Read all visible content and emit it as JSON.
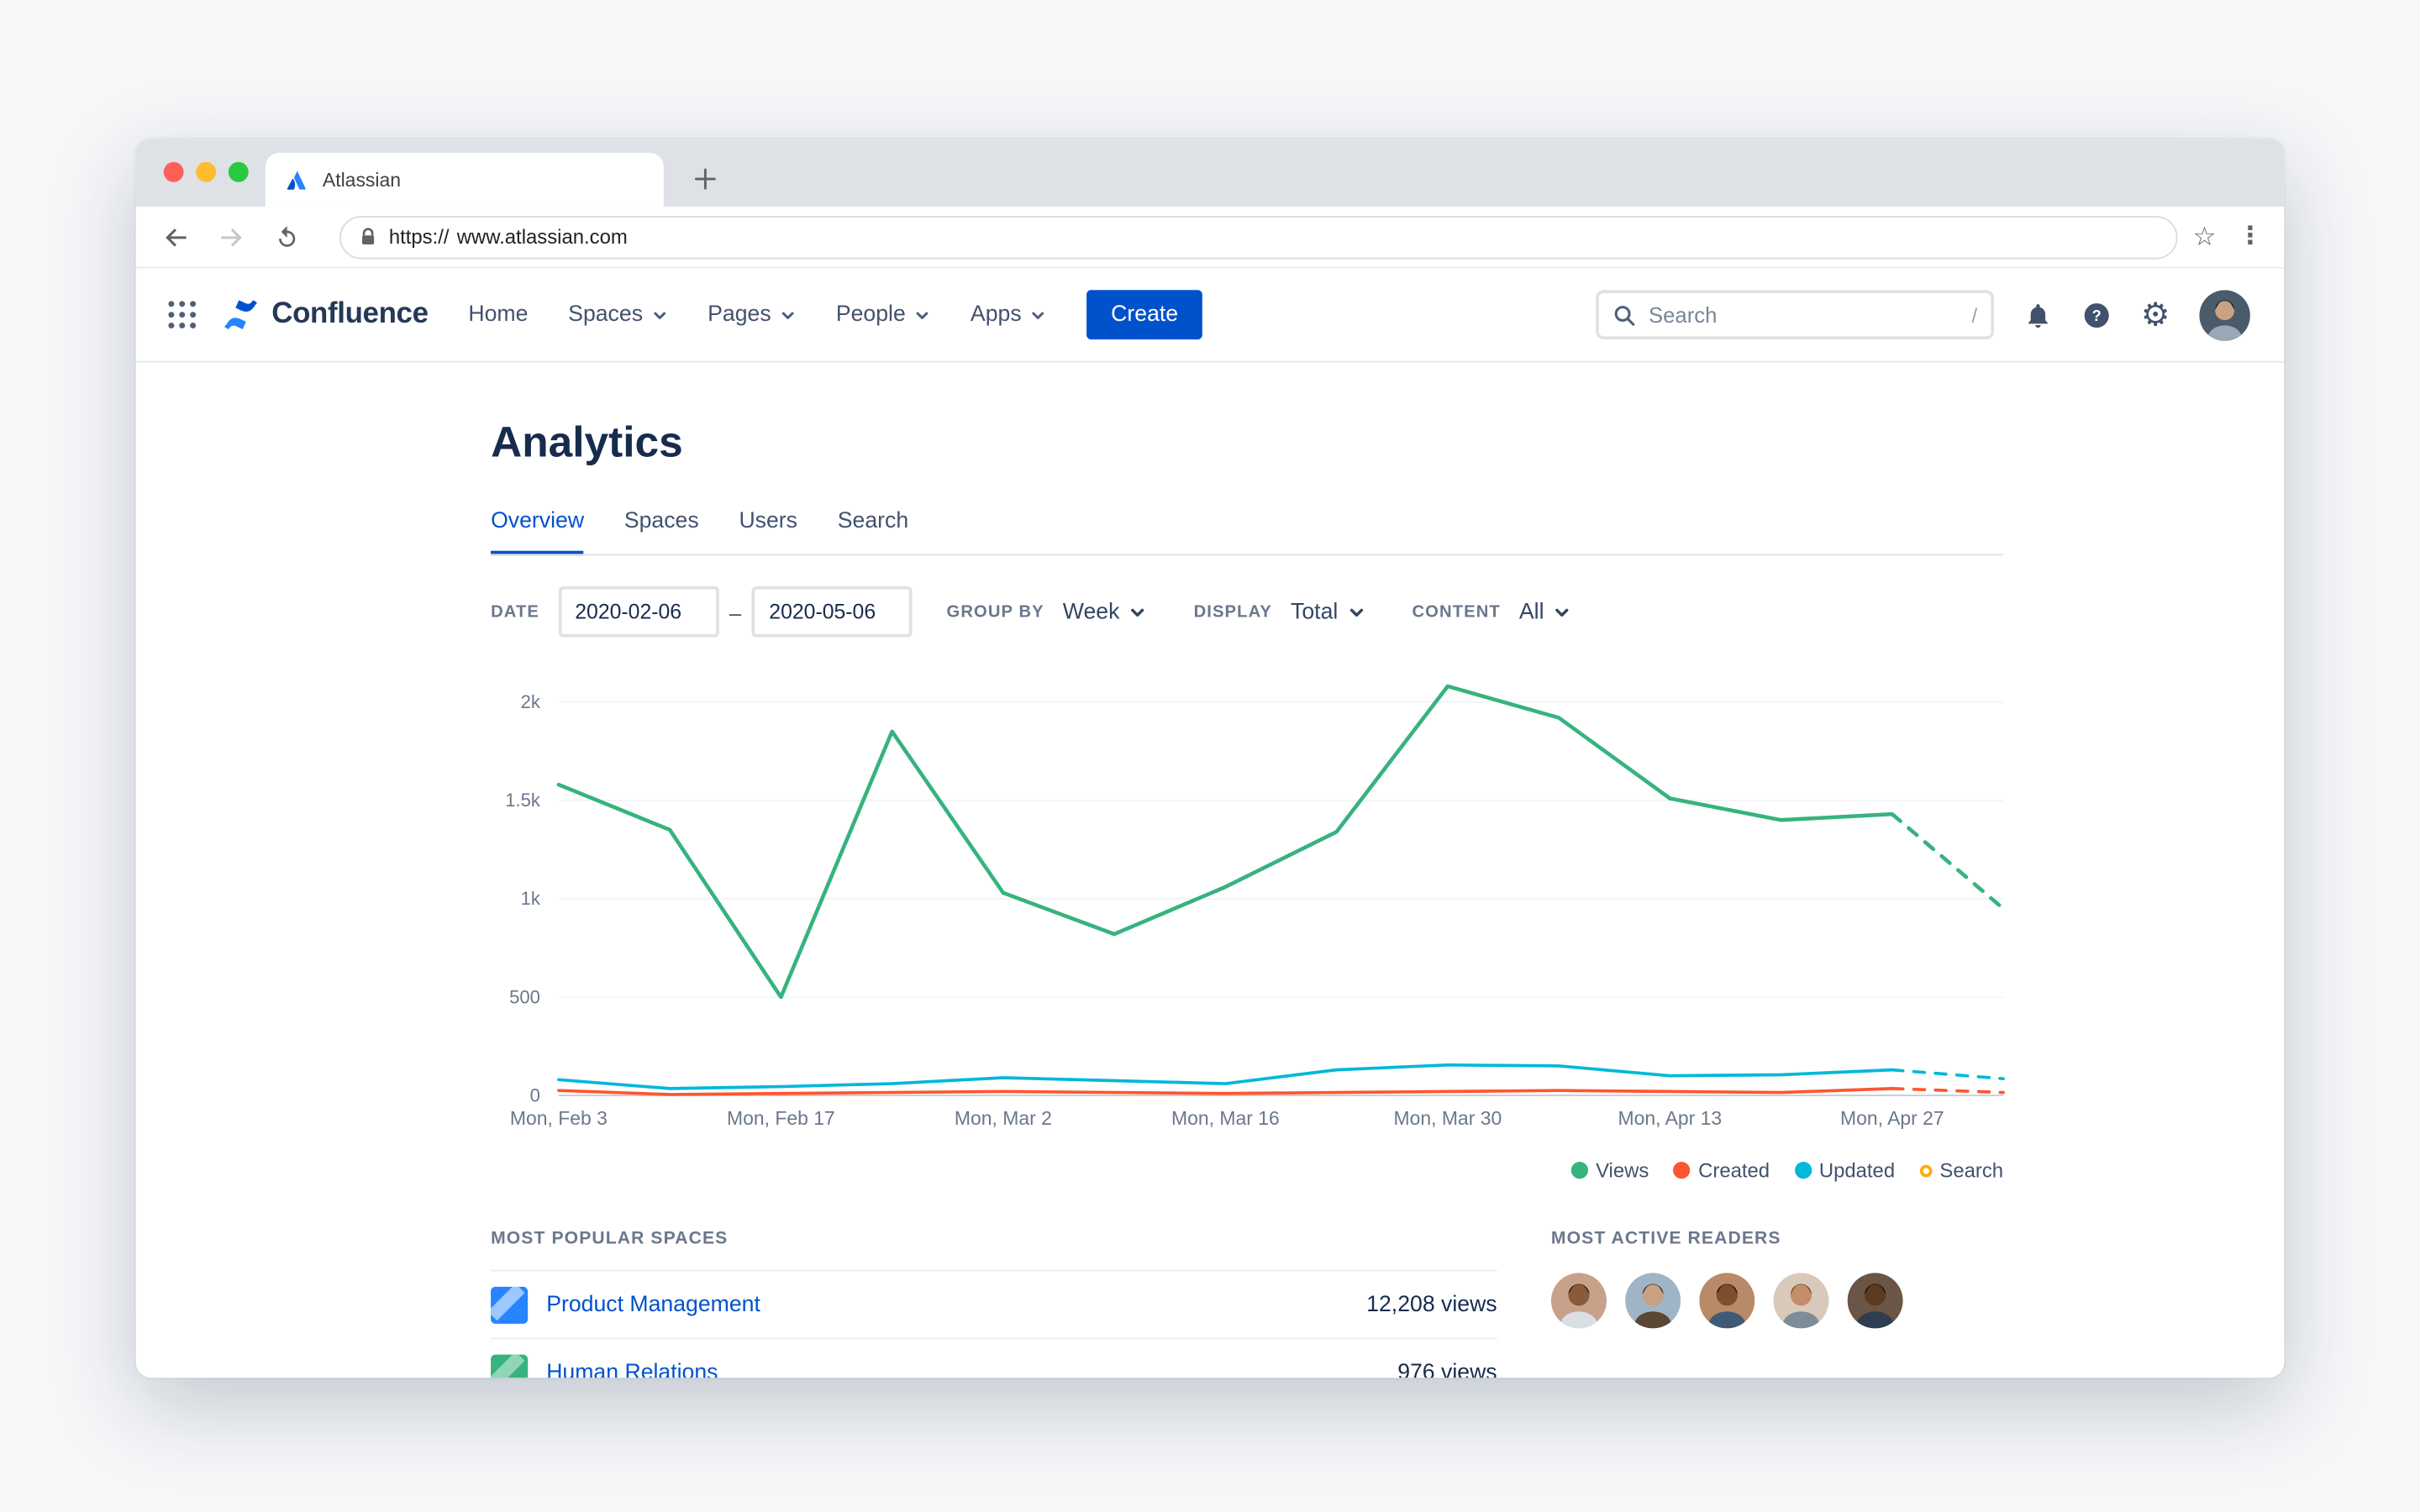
{
  "colors": {
    "accent": "#0052cc",
    "brand_navy": "#253858"
  },
  "browser": {
    "tab_title": "Atlassian",
    "url_scheme": "https://",
    "url_host": "www.atlassian.com"
  },
  "header": {
    "brand": "Confluence",
    "nav": [
      {
        "label": "Home"
      },
      {
        "label": "Spaces"
      },
      {
        "label": "Pages"
      },
      {
        "label": "People"
      },
      {
        "label": "Apps"
      }
    ],
    "create_label": "Create",
    "search": {
      "placeholder": "Search",
      "shortcut": "/"
    },
    "avatar": {
      "bg": "#4a5b6b",
      "skin": "#c9a183",
      "hair": "#241a12",
      "shirt": "#9aa8b5"
    }
  },
  "page": {
    "title": "Analytics",
    "tabs": [
      {
        "label": "Overview"
      },
      {
        "label": "Spaces"
      },
      {
        "label": "Users"
      },
      {
        "label": "Search"
      }
    ],
    "filters": {
      "date_label": "DATE",
      "date_from": "2020-02-06",
      "date_to": "2020-05-06",
      "range_separator": "–",
      "group_by_label": "GROUP BY",
      "group_by_value": "Week",
      "display_label": "DISPLAY",
      "display_value": "Total",
      "content_label": "CONTENT",
      "content_value": "All"
    }
  },
  "chart_data": {
    "type": "line",
    "x_unit": "week",
    "x": [
      "Feb 3",
      "Feb 10",
      "Feb 17",
      "Feb 24",
      "Mar 2",
      "Mar 9",
      "Mar 16",
      "Mar 23",
      "Mar 30",
      "Apr 6",
      "Apr 13",
      "Apr 20",
      "Apr 27",
      "May 4"
    ],
    "x_tick_labels": [
      "Mon, Feb 3",
      "Mon, Feb 17",
      "Mon, Mar 2",
      "Mon, Mar 16",
      "Mon, Mar 30",
      "Mon, Apr 13",
      "Mon, Apr 27"
    ],
    "x_tick_indices": [
      0,
      2,
      4,
      6,
      8,
      10,
      12
    ],
    "y_ticks": [
      0,
      500,
      1000,
      1500,
      2000
    ],
    "y_tick_labels": [
      "0",
      "500",
      "1k",
      "1.5k",
      "2k"
    ],
    "ylim": [
      0,
      2200
    ],
    "grid": false,
    "dashed_last_segment": true,
    "legend_position": "bottom-right",
    "series": [
      {
        "name": "Views",
        "color": "#36b37e",
        "visible": true,
        "values": [
          1580,
          1350,
          500,
          1850,
          1030,
          820,
          1060,
          1340,
          2080,
          1920,
          1510,
          1400,
          1430,
          950
        ]
      },
      {
        "name": "Created",
        "color": "#ff5630",
        "visible": true,
        "values": [
          25,
          5,
          10,
          15,
          20,
          15,
          10,
          15,
          20,
          25,
          20,
          15,
          35,
          15
        ]
      },
      {
        "name": "Updated",
        "color": "#00b8d9",
        "visible": true,
        "values": [
          80,
          35,
          45,
          60,
          90,
          75,
          60,
          130,
          155,
          150,
          100,
          105,
          130,
          85
        ]
      },
      {
        "name": "Search",
        "color": "#ffab00",
        "visible": false,
        "values": []
      }
    ]
  },
  "sections": {
    "popular_spaces": {
      "title": "MOST POPULAR SPACES",
      "rows": [
        {
          "name": "Product Management",
          "views": "12,208 views",
          "icon_color": "#2684ff"
        },
        {
          "name": "Human Relations",
          "views": "976 views",
          "icon_color": "#36b37e"
        }
      ]
    },
    "active_readers": {
      "title": "MOST ACTIVE READERS",
      "avatars": [
        {
          "bg": "#c7a18a",
          "skin": "#8a5a3b",
          "hair": "#2e1d12",
          "shirt": "#d8e0e6"
        },
        {
          "bg": "#9fb4c7",
          "skin": "#caa083",
          "hair": "#4a3625",
          "shirt": "#5b4632"
        },
        {
          "bg": "#b98a68",
          "skin": "#7c4f2f",
          "hair": "#1f140c",
          "shirt": "#3f5a74"
        },
        {
          "bg": "#d9c9bb",
          "skin": "#c28e6a",
          "hair": "#6b4a2f",
          "shirt": "#7e8c98"
        },
        {
          "bg": "#6b5546",
          "skin": "#5d3a22",
          "hair": "#171009",
          "shirt": "#2e3e4e"
        }
      ]
    }
  }
}
